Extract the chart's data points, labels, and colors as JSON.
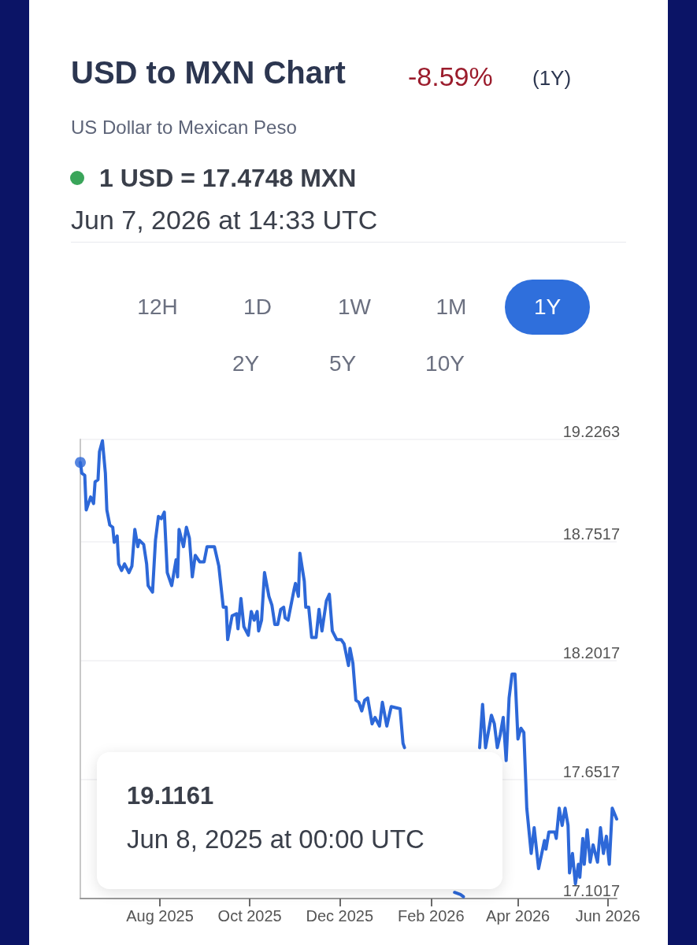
{
  "chart_data": {
    "type": "line",
    "title": "USD to MXN Chart",
    "subtitle": "US Dollar to Mexican Peso",
    "annotations": [
      "-8.59%",
      "(1Y)",
      "1 USD = 17.4748 MXN",
      "Jun 7, 2026 at 14:33 UTC",
      "12H",
      "1D",
      "1W",
      "1M",
      "1Y",
      "2Y",
      "5Y",
      "10Y",
      "19.1161",
      "Jun 8, 2025 at 00:00 UTC"
    ],
    "x": [
      "2025-06-08",
      "2025-06-09",
      "2025-06-11",
      "2025-06-12",
      "2025-06-15",
      "2025-06-17",
      "2025-06-18",
      "2025-06-20",
      "2025-06-21",
      "2025-06-23",
      "2025-06-25",
      "2025-06-26",
      "2025-06-28",
      "2025-06-30",
      "2025-07-01",
      "2025-07-03",
      "2025-07-04",
      "2025-07-06",
      "2025-07-08",
      "2025-07-11",
      "2025-07-13",
      "2025-07-15",
      "2025-07-17",
      "2025-07-18",
      "2025-07-21",
      "2025-07-23",
      "2025-07-24",
      "2025-07-27",
      "2025-07-29",
      "2025-07-31",
      "2025-08-02",
      "2025-08-04",
      "2025-08-06",
      "2025-08-09",
      "2025-08-12",
      "2025-08-13",
      "2025-08-14",
      "2025-08-17",
      "2025-08-19",
      "2025-08-21",
      "2025-08-23",
      "2025-08-25",
      "2025-08-28",
      "2025-08-31",
      "2025-09-02",
      "2025-09-07",
      "2025-09-10",
      "2025-09-13",
      "2025-09-15",
      "2025-09-16",
      "2025-09-19",
      "2025-09-22",
      "2025-09-23",
      "2025-09-25",
      "2025-09-27",
      "2025-09-30",
      "2025-10-02",
      "2025-10-04",
      "2025-10-06",
      "2025-10-07",
      "2025-10-09",
      "2025-10-11",
      "2025-10-14",
      "2025-10-16",
      "2025-10-18",
      "2025-10-20",
      "2025-10-22",
      "2025-10-24",
      "2025-10-25",
      "2025-10-27",
      "2025-10-31",
      "2025-11-01",
      "2025-11-03",
      "2025-11-04",
      "2025-11-07",
      "2025-11-08",
      "2025-11-10",
      "2025-11-12",
      "2025-11-15",
      "2025-11-17",
      "2025-11-19",
      "2025-11-22",
      "2025-11-24",
      "2025-11-26",
      "2025-11-29",
      "2025-12-02",
      "2025-12-04",
      "2025-12-07",
      "2025-12-08",
      "2025-12-10",
      "2025-12-12",
      "2025-12-14",
      "2025-12-16",
      "2025-12-18",
      "2025-12-20",
      "2025-12-23",
      "2025-12-25",
      "2025-12-28",
      "2025-12-30",
      "2026-01-02",
      "2026-01-05",
      "2026-01-11",
      "2026-01-13",
      "2026-01-14",
      "2026-01-31",
      "2026-02-17",
      "2026-02-21",
      "2026-02-23",
      "2026-02-26",
      "2026-03-06",
      "2026-03-08",
      "2026-03-10",
      "2026-03-14",
      "2026-03-16",
      "2026-03-18",
      "2026-03-20",
      "2026-03-22",
      "2026-03-24",
      "2026-03-26",
      "2026-03-28",
      "2026-03-30",
      "2026-04-01",
      "2026-04-03",
      "2026-04-05",
      "2026-04-07",
      "2026-04-10",
      "2026-04-12",
      "2026-04-15",
      "2026-04-19",
      "2026-04-20",
      "2026-04-22",
      "2026-04-26",
      "2026-04-27",
      "2026-04-29",
      "2026-05-01",
      "2026-05-03",
      "2026-05-05",
      "2026-05-06",
      "2026-05-08",
      "2026-05-10",
      "2026-05-12",
      "2026-05-13",
      "2026-05-15",
      "2026-05-16",
      "2026-05-18",
      "2026-05-20",
      "2026-05-22",
      "2026-05-25",
      "2026-05-27",
      "2026-05-29",
      "2026-05-31",
      "2026-06-02",
      "2026-06-04",
      "2026-06-07"
    ],
    "series": [
      {
        "type": "scatter",
        "color": "#2d68d8",
        "marker": "circle",
        "x": [
          "2025-06-08"
        ],
        "values": [
          19.12
        ]
      },
      {
        "color": "#2d68d8",
        "values": [
          19.12,
          19.07,
          19.06,
          18.9,
          18.96,
          18.93,
          19.03,
          19.04,
          19.17,
          19.22,
          19.07,
          18.9,
          18.83,
          18.82,
          18.75,
          18.78,
          18.65,
          18.62,
          18.65,
          18.61,
          18.64,
          18.81,
          18.73,
          18.76,
          18.74,
          18.65,
          18.55,
          18.52,
          18.76,
          18.87,
          18.86,
          18.89,
          18.61,
          18.55,
          18.67,
          18.59,
          18.81,
          18.73,
          18.82,
          18.77,
          18.59,
          18.69,
          18.66,
          18.66,
          18.73,
          18.73,
          18.64,
          18.45,
          18.45,
          18.3,
          18.41,
          18.42,
          18.35,
          18.49,
          18.36,
          18.32,
          18.43,
          18.39,
          18.43,
          18.34,
          18.39,
          18.61,
          18.5,
          18.46,
          18.37,
          18.37,
          18.44,
          18.45,
          18.4,
          18.39,
          18.53,
          18.56,
          18.5,
          18.7,
          18.57,
          18.45,
          18.45,
          18.31,
          18.31,
          18.44,
          18.34,
          18.48,
          18.51,
          18.34,
          18.3,
          18.3,
          18.28,
          18.18,
          18.26,
          18.19,
          18.02,
          18.01,
          17.97,
          18.02,
          18.03,
          17.91,
          17.94,
          17.9,
          18.01,
          17.9,
          17.99,
          17.98,
          17.82,
          17.8,
          null,
          17.13,
          17.12,
          17.11,
          null,
          17.8,
          18.0,
          17.8,
          17.95,
          17.91,
          17.8,
          17.86,
          17.94,
          17.74,
          18.03,
          18.14,
          18.14,
          17.84,
          17.89,
          17.87,
          17.52,
          17.31,
          17.43,
          17.24,
          17.37,
          17.33,
          17.41,
          17.41,
          17.38,
          17.52,
          17.44,
          17.52,
          17.44,
          17.22,
          17.31,
          17.17,
          17.26,
          17.2,
          17.38,
          17.26,
          17.42,
          17.27,
          17.35,
          17.27,
          17.43,
          17.31,
          17.39,
          17.26,
          17.52,
          17.47
        ]
      }
    ],
    "xlim": [
      "2025-06-08",
      "2026-06-07"
    ],
    "xticks": [
      {
        "value": "2025-08-01",
        "label": "Aug 2025"
      },
      {
        "value": "2025-10-01",
        "label": "Oct 2025"
      },
      {
        "value": "2025-12-01",
        "label": "Dec 2025"
      },
      {
        "value": "2026-02-01",
        "label": "Feb 2026"
      },
      {
        "value": "2026-04-01",
        "label": "Apr 2026"
      },
      {
        "value": "2026-06-01",
        "label": "Jun 2026"
      }
    ],
    "ylim": [
      17.1017,
      19.2263
    ],
    "yticks": [
      17.1017,
      17.6517,
      18.2017,
      18.7517,
      19.2263
    ],
    "grid": "y",
    "marker": "none",
    "line_style": "solid"
  }
}
